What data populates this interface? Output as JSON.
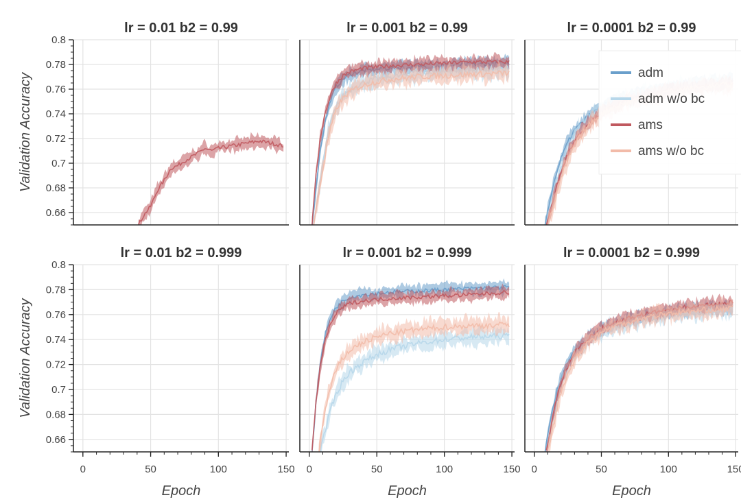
{
  "chart_data": {
    "type": "line",
    "layout": {
      "rows": 2,
      "cols": 3
    },
    "xlabel": "Epoch",
    "ylabel": "Validation Accuracy",
    "xlim": [
      -7,
      152
    ],
    "ylim": [
      0.65,
      0.8
    ],
    "xticks": [
      "0",
      "50",
      "100",
      "150"
    ],
    "yticks": [
      "0.8",
      "0.78",
      "0.76",
      "0.74",
      "0.72",
      "0.7",
      "0.68",
      "0.66"
    ],
    "grid": true,
    "colors": {
      "adm": "#6a9fcb",
      "adm w/o bc": "#b7d7ea",
      "ams": "#c0595f",
      "ams w/o bc": "#f2bba9"
    },
    "legend": {
      "placement": "top-right of panel lr = 0.0001 b2 = 0.99",
      "entries": [
        "adm",
        "adm w/o bc",
        "ams",
        "ams w/o bc"
      ]
    },
    "panels": [
      {
        "title": "lr = 0.01    b2 = 0.99",
        "series": [
          {
            "name": "ams",
            "x": [
              41,
              45,
              50,
              55,
              60,
              65,
              70,
              75,
              80,
              85,
              90,
              95,
              100,
              110,
              120,
              130,
              140,
              148
            ],
            "y": [
              0.65,
              0.658,
              0.665,
              0.678,
              0.686,
              0.696,
              0.698,
              0.702,
              0.705,
              0.708,
              0.712,
              0.71,
              0.712,
              0.714,
              0.716,
              0.718,
              0.716,
              0.714
            ]
          }
        ]
      },
      {
        "title": "lr = 0.001    b2 = 0.99",
        "series": [
          {
            "name": "adm",
            "x": [
              2,
              5,
              8,
              12,
              16,
              20,
              25,
              30,
              40,
              50,
              60,
              80,
              100,
              120,
              148
            ],
            "y": [
              0.65,
              0.68,
              0.71,
              0.735,
              0.752,
              0.762,
              0.768,
              0.772,
              0.775,
              0.776,
              0.777,
              0.778,
              0.779,
              0.78,
              0.781
            ]
          },
          {
            "name": "adm w/o bc",
            "x": [
              3,
              6,
              10,
              14,
              18,
              22,
              28,
              35,
              45,
              60,
              80,
              100,
              120,
              148
            ],
            "y": [
              0.65,
              0.67,
              0.7,
              0.725,
              0.74,
              0.75,
              0.758,
              0.763,
              0.767,
              0.77,
              0.772,
              0.774,
              0.775,
              0.776
            ]
          },
          {
            "name": "ams",
            "x": [
              2,
              5,
              8,
              12,
              16,
              20,
              25,
              30,
              40,
              50,
              60,
              80,
              100,
              120,
              148
            ],
            "y": [
              0.65,
              0.69,
              0.72,
              0.742,
              0.756,
              0.765,
              0.771,
              0.774,
              0.777,
              0.778,
              0.779,
              0.78,
              0.781,
              0.782,
              0.782
            ]
          },
          {
            "name": "ams w/o bc",
            "x": [
              3,
              6,
              10,
              14,
              18,
              22,
              28,
              35,
              45,
              60,
              80,
              100,
              120,
              148
            ],
            "y": [
              0.65,
              0.668,
              0.695,
              0.72,
              0.737,
              0.748,
              0.756,
              0.761,
              0.765,
              0.768,
              0.77,
              0.771,
              0.772,
              0.773
            ]
          }
        ]
      },
      {
        "title": "lr = 0.0001    b2 = 0.99",
        "series": [
          {
            "name": "adm",
            "x": [
              8,
              12,
              16,
              20,
              25,
              30,
              40,
              50,
              60,
              80,
              100,
              120,
              148
            ],
            "y": [
              0.65,
              0.672,
              0.69,
              0.704,
              0.717,
              0.727,
              0.738,
              0.746,
              0.751,
              0.757,
              0.761,
              0.764,
              0.767
            ]
          },
          {
            "name": "adm w/o bc",
            "x": [
              9,
              13,
              17,
              21,
              26,
              31,
              40,
              50,
              60,
              80,
              100,
              120,
              148
            ],
            "y": [
              0.65,
              0.668,
              0.686,
              0.7,
              0.713,
              0.724,
              0.735,
              0.743,
              0.749,
              0.755,
              0.76,
              0.763,
              0.766
            ]
          },
          {
            "name": "ams",
            "x": [
              9,
              13,
              17,
              21,
              26,
              31,
              40,
              50,
              60,
              80,
              100,
              120,
              148
            ],
            "y": [
              0.65,
              0.665,
              0.682,
              0.697,
              0.71,
              0.72,
              0.732,
              0.741,
              0.747,
              0.754,
              0.759,
              0.762,
              0.765
            ]
          },
          {
            "name": "ams w/o bc",
            "x": [
              10,
              14,
              18,
              22,
              27,
              32,
              40,
              50,
              60,
              80,
              100,
              120,
              148
            ],
            "y": [
              0.65,
              0.664,
              0.68,
              0.694,
              0.707,
              0.718,
              0.73,
              0.74,
              0.746,
              0.753,
              0.758,
              0.761,
              0.764
            ]
          }
        ]
      },
      {
        "title": "lr = 0.01    b2 = 0.999",
        "series": []
      },
      {
        "title": "lr = 0.001    b2 = 0.999",
        "series": [
          {
            "name": "adm",
            "x": [
              2,
              5,
              8,
              12,
              16,
              20,
              25,
              30,
              40,
              50,
              60,
              80,
              100,
              120,
              148
            ],
            "y": [
              0.65,
              0.69,
              0.72,
              0.745,
              0.758,
              0.766,
              0.771,
              0.774,
              0.776,
              0.777,
              0.778,
              0.779,
              0.78,
              0.781,
              0.782
            ]
          },
          {
            "name": "adm w/o bc",
            "x": [
              8,
              12,
              16,
              20,
              25,
              30,
              40,
              50,
              60,
              80,
              100,
              120,
              148
            ],
            "y": [
              0.65,
              0.668,
              0.684,
              0.697,
              0.707,
              0.714,
              0.722,
              0.728,
              0.732,
              0.737,
              0.74,
              0.742,
              0.743
            ]
          },
          {
            "name": "ams",
            "x": [
              2,
              5,
              8,
              12,
              16,
              20,
              25,
              30,
              40,
              50,
              60,
              80,
              100,
              120,
              148
            ],
            "y": [
              0.65,
              0.69,
              0.718,
              0.74,
              0.753,
              0.761,
              0.766,
              0.769,
              0.771,
              0.772,
              0.773,
              0.774,
              0.775,
              0.776,
              0.778
            ]
          },
          {
            "name": "ams w/o bc",
            "x": [
              7,
              10,
              14,
              18,
              22,
              27,
              32,
              40,
              50,
              60,
              80,
              100,
              120,
              148
            ],
            "y": [
              0.65,
              0.672,
              0.695,
              0.71,
              0.72,
              0.728,
              0.733,
              0.738,
              0.742,
              0.745,
              0.748,
              0.75,
              0.751,
              0.752
            ]
          }
        ]
      },
      {
        "title": "lr = 0.0001    b2 = 0.999",
        "series": [
          {
            "name": "adm",
            "x": [
              8,
              12,
              16,
              20,
              25,
              30,
              40,
              50,
              60,
              80,
              100,
              120,
              148
            ],
            "y": [
              0.65,
              0.675,
              0.695,
              0.709,
              0.722,
              0.731,
              0.741,
              0.748,
              0.753,
              0.758,
              0.762,
              0.764,
              0.766
            ]
          },
          {
            "name": "adm w/o bc",
            "x": [
              9,
              13,
              17,
              21,
              26,
              31,
              40,
              50,
              60,
              80,
              100,
              120,
              148
            ],
            "y": [
              0.65,
              0.672,
              0.692,
              0.706,
              0.719,
              0.729,
              0.739,
              0.746,
              0.751,
              0.757,
              0.761,
              0.763,
              0.765
            ]
          },
          {
            "name": "ams",
            "x": [
              9,
              13,
              17,
              21,
              26,
              31,
              40,
              50,
              60,
              80,
              100,
              120,
              148
            ],
            "y": [
              0.65,
              0.674,
              0.694,
              0.708,
              0.721,
              0.731,
              0.741,
              0.749,
              0.754,
              0.76,
              0.764,
              0.767,
              0.77
            ]
          },
          {
            "name": "ams w/o bc",
            "x": [
              10,
              14,
              18,
              22,
              27,
              32,
              40,
              50,
              60,
              80,
              100,
              120,
              148
            ],
            "y": [
              0.65,
              0.67,
              0.69,
              0.704,
              0.717,
              0.727,
              0.738,
              0.746,
              0.751,
              0.757,
              0.761,
              0.763,
              0.765
            ]
          }
        ]
      }
    ]
  }
}
